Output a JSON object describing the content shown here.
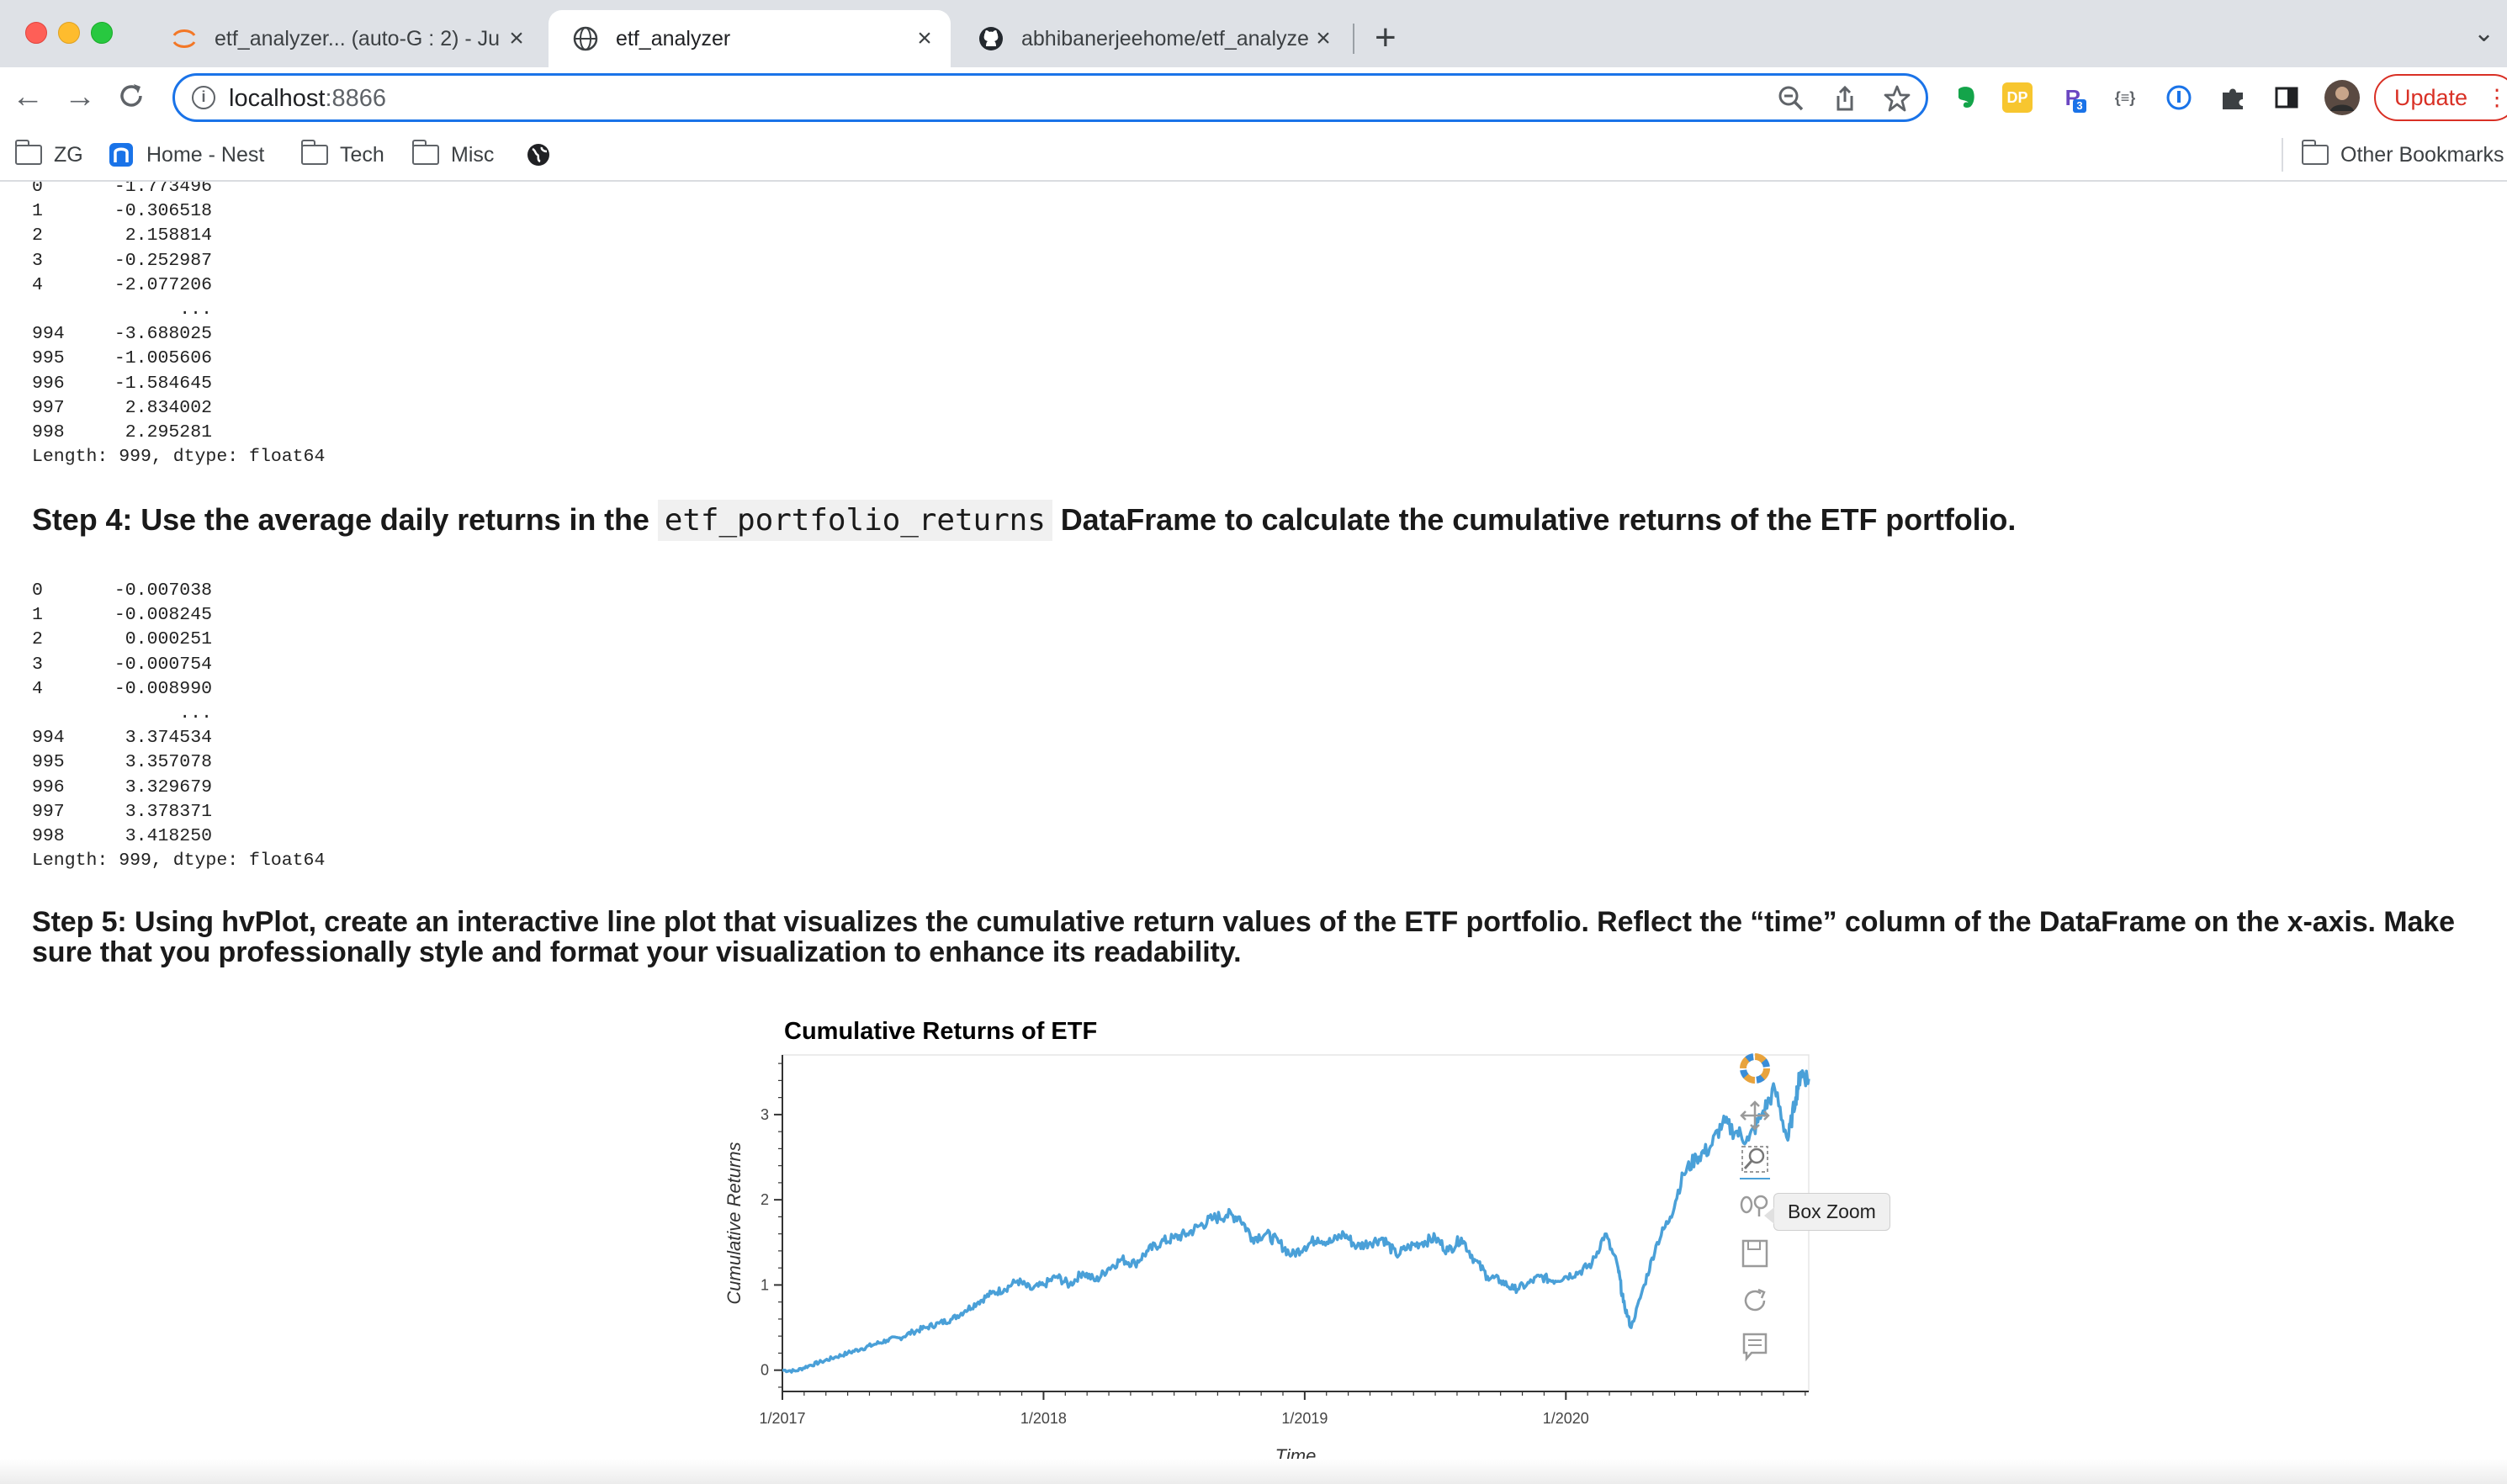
{
  "browser": {
    "tabs": [
      {
        "title": "etf_analyzer... (auto-G : 2) - Ju",
        "icon": "jupyter-icon"
      },
      {
        "title": "etf_analyzer",
        "icon": "globe-icon"
      },
      {
        "title": "abhibanerjeehome/etf_analyze",
        "icon": "github-icon"
      }
    ],
    "close_glyph": "×",
    "new_tab_glyph": "+",
    "url_host": "localhost",
    "url_port": ":8866",
    "update_label": "Update"
  },
  "bookmarks": [
    {
      "label": "ZG"
    },
    {
      "label": "Home - Nest"
    },
    {
      "label": "Tech"
    },
    {
      "label": "Misc"
    }
  ],
  "other_bookmarks": "Other Bookmarks",
  "outputs": {
    "first": {
      "rows": [
        {
          "i": "0",
          "v": "-1.773496"
        },
        {
          "i": "1",
          "v": "-0.306518"
        },
        {
          "i": "2",
          "v": "2.158814"
        },
        {
          "i": "3",
          "v": "-0.252987"
        },
        {
          "i": "4",
          "v": "-2.077206"
        },
        {
          "i": "",
          "v": "..."
        },
        {
          "i": "994",
          "v": "-3.688025"
        },
        {
          "i": "995",
          "v": "-1.005606"
        },
        {
          "i": "996",
          "v": "-1.584645"
        },
        {
          "i": "997",
          "v": "2.834002"
        },
        {
          "i": "998",
          "v": "2.295281"
        }
      ],
      "footer": "Length: 999, dtype: float64"
    },
    "second": {
      "rows": [
        {
          "i": "0",
          "v": "-0.007038"
        },
        {
          "i": "1",
          "v": "-0.008245"
        },
        {
          "i": "2",
          "v": "0.000251"
        },
        {
          "i": "3",
          "v": "-0.000754"
        },
        {
          "i": "4",
          "v": "-0.008990"
        },
        {
          "i": "",
          "v": "..."
        },
        {
          "i": "994",
          "v": "3.374534"
        },
        {
          "i": "995",
          "v": "3.357078"
        },
        {
          "i": "996",
          "v": "3.329679"
        },
        {
          "i": "997",
          "v": "3.378371"
        },
        {
          "i": "998",
          "v": "3.418250"
        }
      ],
      "footer": "Length: 999, dtype: float64"
    }
  },
  "step4": {
    "before": "Step 4: Use the average daily returns in the",
    "code": "etf_portfolio_returns",
    "after": "DataFrame to calculate the cumulative returns of the ETF portfolio."
  },
  "step5": {
    "line1": "Step 5: Using hvPlot, create an interactive line plot that visualizes the cumulative return values of the ETF portfolio. Reflect the “time” column of the DataFrame on the x-axis. Make",
    "line2": "sure that you professionally style and format your visualization to enhance its readability."
  },
  "chart_data": {
    "type": "line",
    "title": "Cumulative Returns of ETF",
    "xlabel": "Time",
    "ylabel": "Cumulative Returns",
    "x_ticks": [
      "1/2017",
      "1/2018",
      "1/2019",
      "1/2020"
    ],
    "y_ticks": [
      0,
      1,
      2,
      3
    ],
    "xlim": [
      2017.0,
      2020.93
    ],
    "ylim": [
      -0.25,
      3.7
    ],
    "grid": false,
    "legend": "none",
    "color": "#4aa0d8",
    "series": [
      {
        "x": [
          2017.0,
          2017.05,
          2017.1,
          2017.15,
          2017.2,
          2017.25,
          2017.3,
          2017.35,
          2017.4,
          2017.45,
          2017.5,
          2017.55,
          2017.6,
          2017.65,
          2017.7,
          2017.75,
          2017.8,
          2017.85,
          2017.9,
          2017.95,
          2018.0,
          2018.05,
          2018.1,
          2018.15,
          2018.2,
          2018.25,
          2018.3,
          2018.35,
          2018.4,
          2018.45,
          2018.5,
          2018.55,
          2018.6,
          2018.65,
          2018.7,
          2018.75,
          2018.8,
          2018.85,
          2018.9,
          2018.95,
          2019.0,
          2019.05,
          2019.1,
          2019.15,
          2019.2,
          2019.25,
          2019.3,
          2019.35,
          2019.4,
          2019.45,
          2019.5,
          2019.55,
          2019.6,
          2019.65,
          2019.7,
          2019.75,
          2019.8,
          2019.85,
          2019.9,
          2019.95,
          2020.0,
          2020.05,
          2020.1,
          2020.15,
          2020.2,
          2020.22,
          2020.25,
          2020.3,
          2020.35,
          2020.4,
          2020.45,
          2020.5,
          2020.55,
          2020.6,
          2020.65,
          2020.7,
          2020.75,
          2020.8,
          2020.85,
          2020.88,
          2020.9,
          2020.93
        ],
        "y": [
          0.0,
          -0.01,
          0.05,
          0.1,
          0.15,
          0.2,
          0.25,
          0.3,
          0.35,
          0.38,
          0.45,
          0.5,
          0.55,
          0.6,
          0.7,
          0.8,
          0.9,
          0.95,
          1.05,
          0.95,
          1.0,
          1.1,
          1.0,
          1.15,
          1.05,
          1.2,
          1.3,
          1.25,
          1.4,
          1.5,
          1.55,
          1.6,
          1.7,
          1.78,
          1.82,
          1.8,
          1.55,
          1.6,
          1.5,
          1.35,
          1.45,
          1.55,
          1.5,
          1.6,
          1.45,
          1.5,
          1.55,
          1.35,
          1.45,
          1.5,
          1.55,
          1.4,
          1.55,
          1.3,
          1.1,
          1.05,
          0.95,
          1.0,
          1.1,
          1.05,
          1.1,
          1.15,
          1.25,
          1.6,
          1.2,
          0.8,
          0.5,
          1.0,
          1.5,
          1.8,
          2.3,
          2.5,
          2.6,
          2.9,
          2.8,
          2.7,
          3.0,
          3.3,
          2.7,
          3.2,
          3.5,
          3.42
        ]
      }
    ]
  },
  "chart_tooltip": "Box Zoom"
}
